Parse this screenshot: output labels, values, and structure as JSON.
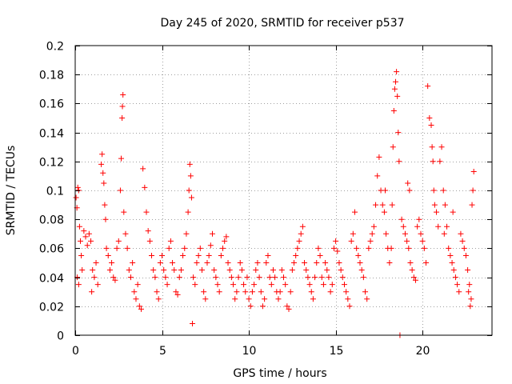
{
  "chart_data": {
    "type": "scatter",
    "title": "Day 245 of 2020, SRMTID for receiver p537",
    "xlabel": "GPS time / hours",
    "ylabel": "SRMTID / TECUs",
    "xlim": [
      0,
      24
    ],
    "ylim": [
      0,
      0.2
    ],
    "x_ticks": [
      0,
      5,
      10,
      15,
      20
    ],
    "x_tick_labels": [
      "0",
      "5",
      "10",
      "15",
      "20"
    ],
    "y_ticks": [
      0,
      0.02,
      0.04,
      0.06,
      0.08,
      0.1,
      0.12,
      0.14,
      0.16,
      0.18,
      0.2
    ],
    "y_tick_labels": [
      "0",
      "0.02",
      "0.04",
      "0.06",
      "0.08",
      "0.1",
      "0.12",
      "0.14",
      "0.16",
      "0.18",
      "0.2"
    ],
    "grid": true,
    "marker": "+",
    "color": "#ff0000",
    "series": [
      {
        "name": "SRMTID",
        "points": [
          [
            0.05,
            0.095
          ],
          [
            0.1,
            0.088
          ],
          [
            0.15,
            0.102
          ],
          [
            0.2,
            0.1
          ],
          [
            0.25,
            0.075
          ],
          [
            0.3,
            0.065
          ],
          [
            0.35,
            0.055
          ],
          [
            0.4,
            0.045
          ],
          [
            0.12,
            0.04
          ],
          [
            0.2,
            0.035
          ],
          [
            0.5,
            0.072
          ],
          [
            0.6,
            0.068
          ],
          [
            0.7,
            0.062
          ],
          [
            0.8,
            0.07
          ],
          [
            0.9,
            0.065
          ],
          [
            1.0,
            0.045
          ],
          [
            1.1,
            0.04
          ],
          [
            1.2,
            0.05
          ],
          [
            1.3,
            0.035
          ],
          [
            0.95,
            0.03
          ],
          [
            1.5,
            0.118
          ],
          [
            1.55,
            0.125
          ],
          [
            1.6,
            0.112
          ],
          [
            1.65,
            0.105
          ],
          [
            1.7,
            0.09
          ],
          [
            1.75,
            0.08
          ],
          [
            1.8,
            0.06
          ],
          [
            1.9,
            0.055
          ],
          [
            2.0,
            0.045
          ],
          [
            2.1,
            0.05
          ],
          [
            2.2,
            0.04
          ],
          [
            2.3,
            0.038
          ],
          [
            2.4,
            0.06
          ],
          [
            2.5,
            0.065
          ],
          [
            2.6,
            0.1
          ],
          [
            2.65,
            0.122
          ],
          [
            2.7,
            0.15
          ],
          [
            2.72,
            0.158
          ],
          [
            2.75,
            0.166
          ],
          [
            2.8,
            0.085
          ],
          [
            2.9,
            0.07
          ],
          [
            3.0,
            0.06
          ],
          [
            3.1,
            0.045
          ],
          [
            3.2,
            0.04
          ],
          [
            3.3,
            0.05
          ],
          [
            3.4,
            0.03
          ],
          [
            3.5,
            0.025
          ],
          [
            3.6,
            0.035
          ],
          [
            3.7,
            0.02
          ],
          [
            3.8,
            0.018
          ],
          [
            3.9,
            0.115
          ],
          [
            4.0,
            0.102
          ],
          [
            4.1,
            0.085
          ],
          [
            4.2,
            0.072
          ],
          [
            4.3,
            0.065
          ],
          [
            4.4,
            0.055
          ],
          [
            4.5,
            0.045
          ],
          [
            4.6,
            0.04
          ],
          [
            4.7,
            0.03
          ],
          [
            4.8,
            0.025
          ],
          [
            4.9,
            0.05
          ],
          [
            5.0,
            0.055
          ],
          [
            5.1,
            0.045
          ],
          [
            5.2,
            0.04
          ],
          [
            5.3,
            0.035
          ],
          [
            5.4,
            0.06
          ],
          [
            5.5,
            0.065
          ],
          [
            5.6,
            0.05
          ],
          [
            5.7,
            0.045
          ],
          [
            5.8,
            0.03
          ],
          [
            5.9,
            0.028
          ],
          [
            6.0,
            0.04
          ],
          [
            6.1,
            0.045
          ],
          [
            6.2,
            0.055
          ],
          [
            6.3,
            0.06
          ],
          [
            6.4,
            0.07
          ],
          [
            6.5,
            0.085
          ],
          [
            6.55,
            0.1
          ],
          [
            6.6,
            0.118
          ],
          [
            6.65,
            0.11
          ],
          [
            6.7,
            0.095
          ],
          [
            6.75,
            0.008
          ],
          [
            6.8,
            0.04
          ],
          [
            6.9,
            0.035
          ],
          [
            7.0,
            0.05
          ],
          [
            7.1,
            0.055
          ],
          [
            7.2,
            0.06
          ],
          [
            7.3,
            0.045
          ],
          [
            7.4,
            0.03
          ],
          [
            7.5,
            0.025
          ],
          [
            7.6,
            0.05
          ],
          [
            7.7,
            0.055
          ],
          [
            7.8,
            0.062
          ],
          [
            7.9,
            0.07
          ],
          [
            8.0,
            0.045
          ],
          [
            8.1,
            0.04
          ],
          [
            8.2,
            0.035
          ],
          [
            8.3,
            0.03
          ],
          [
            8.4,
            0.055
          ],
          [
            8.5,
            0.06
          ],
          [
            8.6,
            0.065
          ],
          [
            8.7,
            0.068
          ],
          [
            8.8,
            0.05
          ],
          [
            8.9,
            0.045
          ],
          [
            9.0,
            0.04
          ],
          [
            9.1,
            0.035
          ],
          [
            9.2,
            0.025
          ],
          [
            9.3,
            0.03
          ],
          [
            9.4,
            0.04
          ],
          [
            9.5,
            0.05
          ],
          [
            9.6,
            0.045
          ],
          [
            9.7,
            0.035
          ],
          [
            9.8,
            0.03
          ],
          [
            9.9,
            0.04
          ],
          [
            10.0,
            0.025
          ],
          [
            10.1,
            0.02
          ],
          [
            10.2,
            0.03
          ],
          [
            10.3,
            0.035
          ],
          [
            10.4,
            0.045
          ],
          [
            10.5,
            0.05
          ],
          [
            10.6,
            0.04
          ],
          [
            10.7,
            0.03
          ],
          [
            10.8,
            0.02
          ],
          [
            10.9,
            0.025
          ],
          [
            11.0,
            0.05
          ],
          [
            11.1,
            0.055
          ],
          [
            11.2,
            0.04
          ],
          [
            11.3,
            0.035
          ],
          [
            11.4,
            0.045
          ],
          [
            11.5,
            0.04
          ],
          [
            11.6,
            0.03
          ],
          [
            11.7,
            0.025
          ],
          [
            11.8,
            0.03
          ],
          [
            11.9,
            0.045
          ],
          [
            12.0,
            0.04
          ],
          [
            12.1,
            0.035
          ],
          [
            12.2,
            0.02
          ],
          [
            12.3,
            0.018
          ],
          [
            12.4,
            0.03
          ],
          [
            12.5,
            0.045
          ],
          [
            12.6,
            0.05
          ],
          [
            12.7,
            0.055
          ],
          [
            12.8,
            0.06
          ],
          [
            12.9,
            0.065
          ],
          [
            13.0,
            0.07
          ],
          [
            13.1,
            0.075
          ],
          [
            13.2,
            0.05
          ],
          [
            13.3,
            0.045
          ],
          [
            13.4,
            0.04
          ],
          [
            13.5,
            0.035
          ],
          [
            13.6,
            0.03
          ],
          [
            13.7,
            0.025
          ],
          [
            13.8,
            0.04
          ],
          [
            13.9,
            0.05
          ],
          [
            14.0,
            0.06
          ],
          [
            14.1,
            0.055
          ],
          [
            14.2,
            0.04
          ],
          [
            14.3,
            0.035
          ],
          [
            14.4,
            0.05
          ],
          [
            14.5,
            0.045
          ],
          [
            14.6,
            0.04
          ],
          [
            14.7,
            0.03
          ],
          [
            14.8,
            0.035
          ],
          [
            14.9,
            0.06
          ],
          [
            15.0,
            0.065
          ],
          [
            15.1,
            0.058
          ],
          [
            15.2,
            0.05
          ],
          [
            15.3,
            0.045
          ],
          [
            15.4,
            0.04
          ],
          [
            15.5,
            0.035
          ],
          [
            15.6,
            0.03
          ],
          [
            15.7,
            0.025
          ],
          [
            15.8,
            0.02
          ],
          [
            15.9,
            0.065
          ],
          [
            16.0,
            0.07
          ],
          [
            16.1,
            0.085
          ],
          [
            16.2,
            0.06
          ],
          [
            16.3,
            0.055
          ],
          [
            16.4,
            0.05
          ],
          [
            16.5,
            0.045
          ],
          [
            16.6,
            0.04
          ],
          [
            16.7,
            0.03
          ],
          [
            16.8,
            0.025
          ],
          [
            16.9,
            0.06
          ],
          [
            17.0,
            0.065
          ],
          [
            17.1,
            0.07
          ],
          [
            17.2,
            0.075
          ],
          [
            17.3,
            0.09
          ],
          [
            17.4,
            0.11
          ],
          [
            17.5,
            0.123
          ],
          [
            17.6,
            0.1
          ],
          [
            17.7,
            0.09
          ],
          [
            17.8,
            0.085
          ],
          [
            17.9,
            0.07
          ],
          [
            18.0,
            0.06
          ],
          [
            18.1,
            0.05
          ],
          [
            18.2,
            0.06
          ],
          [
            18.3,
            0.13
          ],
          [
            18.35,
            0.155
          ],
          [
            18.4,
            0.17
          ],
          [
            18.45,
            0.175
          ],
          [
            18.5,
            0.182
          ],
          [
            18.55,
            0.165
          ],
          [
            18.6,
            0.14
          ],
          [
            18.65,
            0.12
          ],
          [
            18.7,
            0.0
          ],
          [
            18.8,
            0.08
          ],
          [
            18.9,
            0.075
          ],
          [
            19.0,
            0.07
          ],
          [
            19.1,
            0.065
          ],
          [
            19.2,
            0.06
          ],
          [
            19.3,
            0.05
          ],
          [
            19.4,
            0.045
          ],
          [
            19.5,
            0.04
          ],
          [
            19.6,
            0.038
          ],
          [
            19.7,
            0.075
          ],
          [
            19.8,
            0.08
          ],
          [
            19.9,
            0.07
          ],
          [
            20.0,
            0.065
          ],
          [
            20.1,
            0.06
          ],
          [
            20.2,
            0.05
          ],
          [
            20.3,
            0.172
          ],
          [
            20.4,
            0.15
          ],
          [
            20.5,
            0.145
          ],
          [
            20.55,
            0.13
          ],
          [
            20.6,
            0.12
          ],
          [
            20.65,
            0.1
          ],
          [
            20.7,
            0.09
          ],
          [
            20.8,
            0.085
          ],
          [
            20.9,
            0.075
          ],
          [
            21.0,
            0.12
          ],
          [
            21.1,
            0.13
          ],
          [
            21.2,
            0.1
          ],
          [
            21.3,
            0.09
          ],
          [
            21.4,
            0.075
          ],
          [
            21.5,
            0.06
          ],
          [
            21.6,
            0.055
          ],
          [
            21.7,
            0.05
          ],
          [
            21.8,
            0.045
          ],
          [
            21.9,
            0.04
          ],
          [
            22.0,
            0.035
          ],
          [
            22.1,
            0.03
          ],
          [
            22.2,
            0.07
          ],
          [
            22.3,
            0.065
          ],
          [
            22.4,
            0.06
          ],
          [
            22.5,
            0.055
          ],
          [
            22.6,
            0.045
          ],
          [
            22.7,
            0.035
          ],
          [
            22.8,
            0.025
          ],
          [
            22.9,
            0.1
          ],
          [
            22.95,
            0.113
          ],
          [
            22.85,
            0.09
          ],
          [
            22.75,
            0.02
          ],
          [
            22.65,
            0.03
          ],
          [
            21.75,
            0.085
          ],
          [
            21.25,
            0.07
          ],
          [
            19.25,
            0.1
          ],
          [
            19.15,
            0.105
          ],
          [
            18.25,
            0.09
          ],
          [
            17.85,
            0.1
          ]
        ]
      }
    ]
  }
}
